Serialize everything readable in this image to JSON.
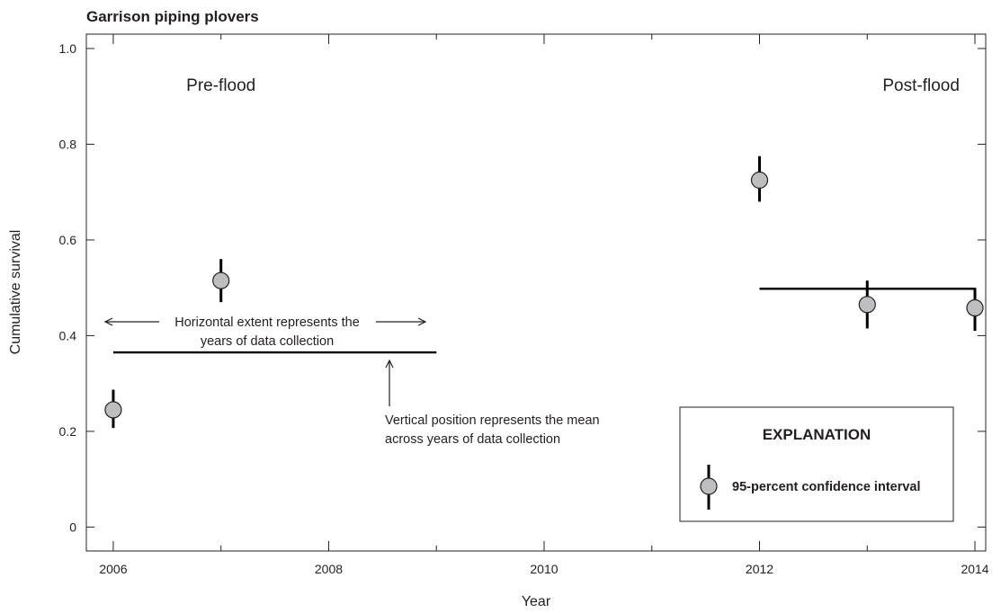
{
  "chart_data": {
    "type": "scatter",
    "title": "Garrison piping plovers",
    "xlabel": "Year",
    "ylabel": "Cumulative survival",
    "xlim": [
      2005.75,
      2014.1
    ],
    "ylim": [
      -0.05,
      1.03
    ],
    "x_ticks": [
      2006,
      2008,
      2010,
      2012,
      2014
    ],
    "x_tick_labels": [
      "2006",
      "2008",
      "2010",
      "2012",
      "2014"
    ],
    "x_minor_ticks": [
      2007,
      2009,
      2011,
      2013
    ],
    "y_ticks": [
      0,
      0.2,
      0.4,
      0.6,
      0.8,
      1.0
    ],
    "y_tick_labels": [
      "0",
      "0.2",
      "0.4",
      "0.6",
      "0.8",
      "1.0"
    ],
    "grid": false,
    "points": [
      {
        "x": 2006,
        "y": 0.245,
        "lower": 0.207,
        "upper": 0.287
      },
      {
        "x": 2007,
        "y": 0.515,
        "lower": 0.47,
        "upper": 0.56
      },
      {
        "x": 2012,
        "y": 0.725,
        "lower": 0.68,
        "upper": 0.775
      },
      {
        "x": 2013,
        "y": 0.465,
        "lower": 0.415,
        "upper": 0.515
      },
      {
        "x": 2014,
        "y": 0.458,
        "lower": 0.41,
        "upper": 0.5
      }
    ],
    "mean_lines": [
      {
        "x_start": 2006,
        "x_end": 2009,
        "y": 0.365
      },
      {
        "x_start": 2012,
        "x_end": 2014,
        "y": 0.498
      }
    ],
    "period_labels": [
      {
        "text": "Pre-flood",
        "x": 2007,
        "y": 0.925
      },
      {
        "text": "Post-flood",
        "x": 2013.5,
        "y": 0.925
      }
    ],
    "annotations": {
      "horizontal_line1": "Horizontal extent represents the",
      "horizontal_line2": "years of data collection",
      "vertical_line1": "Vertical position represents the mean",
      "vertical_line2": "across years of data collection"
    },
    "legend": {
      "title": "EXPLANATION",
      "entry": "95-percent confidence interval",
      "position": "bottom-right"
    }
  }
}
